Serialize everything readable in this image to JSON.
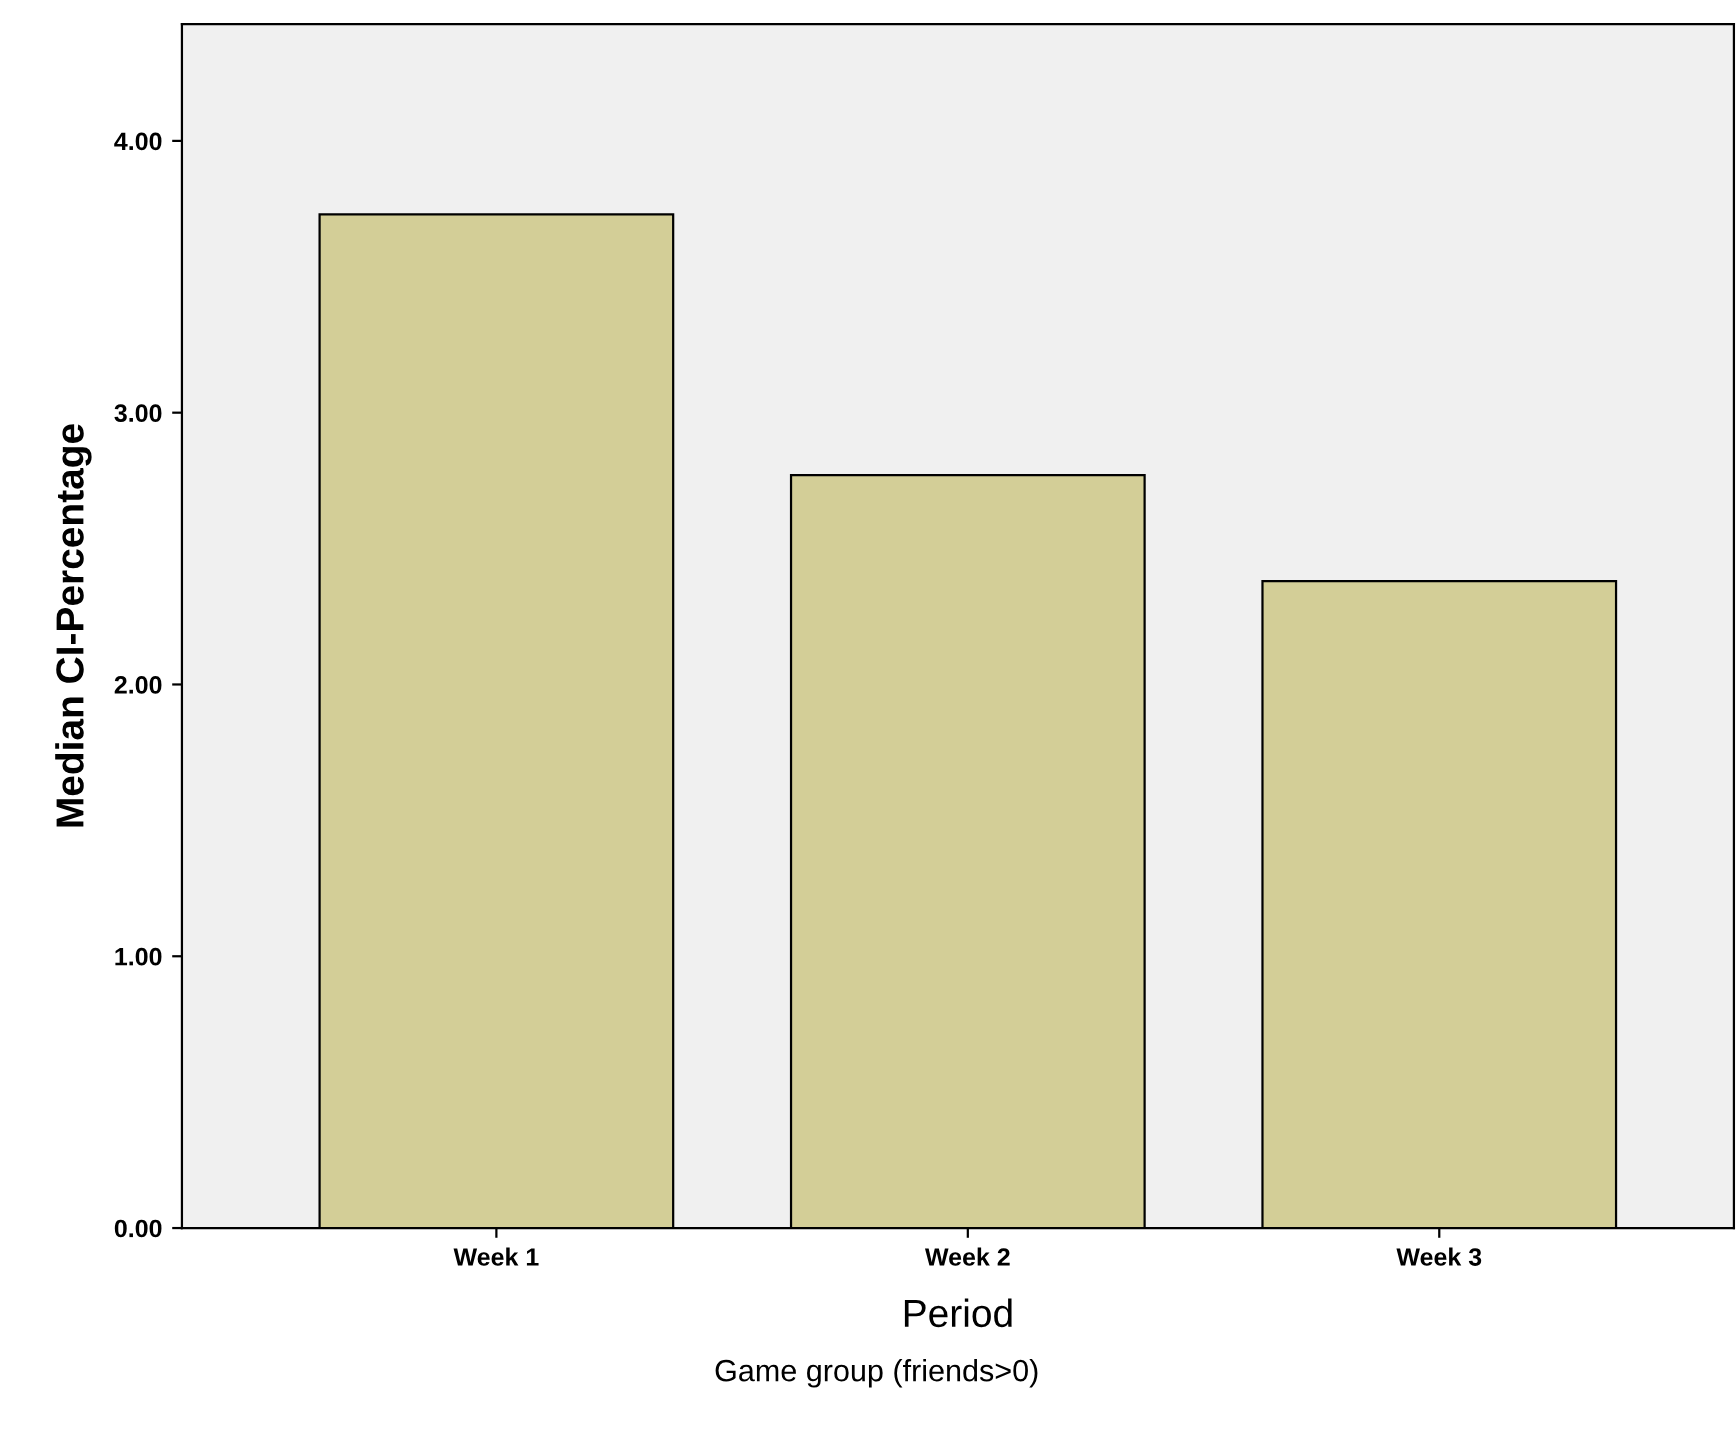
{
  "chart_data": {
    "type": "bar",
    "xlabel": "Period",
    "ylabel": "Median CI-Percentage",
    "categories": [
      "Week 1",
      "Week 2",
      "Week 3"
    ],
    "values": [
      3.73,
      2.77,
      2.38
    ],
    "color": "#d3ce97",
    "ylim": [
      0,
      4.43
    ],
    "yticks": [
      {
        "value": 0,
        "label": "0.00"
      },
      {
        "value": 1,
        "label": "1.00"
      },
      {
        "value": 2,
        "label": "2.00"
      },
      {
        "value": 3,
        "label": "3.00"
      },
      {
        "value": 4,
        "label": "4.00"
      }
    ],
    "grid": false,
    "legend": false,
    "annotations": [
      "Game group (friends>0)"
    ]
  }
}
